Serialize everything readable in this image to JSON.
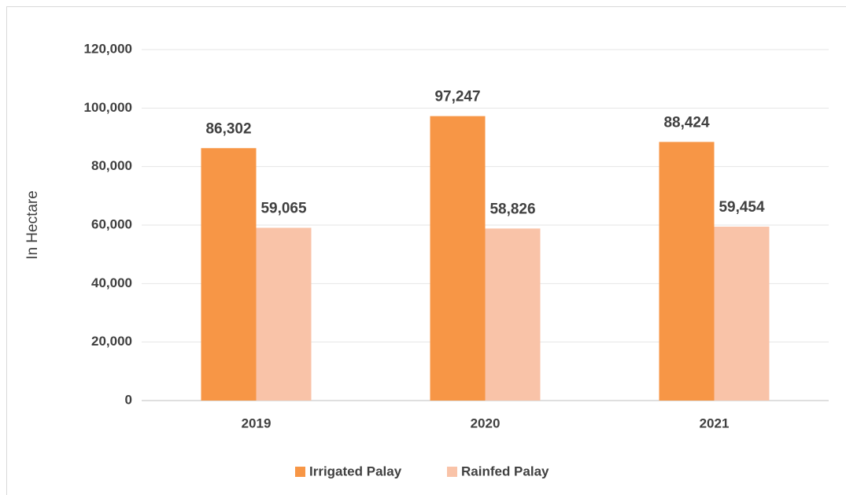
{
  "chart_data": {
    "type": "bar",
    "y_label": "In Hectare",
    "categories": [
      "2019",
      "2020",
      "2021"
    ],
    "series": [
      {
        "name": "Irrigated Palay",
        "color": "#f79646",
        "values": [
          86302,
          97247,
          88424
        ],
        "value_labels": [
          "86,302",
          "97,247",
          "88,424"
        ]
      },
      {
        "name": "Rainfed Palay",
        "color": "#f9c3a8",
        "values": [
          59065,
          58826,
          59454
        ],
        "value_labels": [
          "59,065",
          "58,826",
          "59,454"
        ]
      }
    ],
    "ylim": [
      0,
      120000
    ],
    "yticks": [
      0,
      {
        "value": 20000,
        "label": "20,000"
      },
      {
        "value": 40000,
        "label": "40,000"
      },
      {
        "value": 60000,
        "label": "60,000"
      },
      {
        "value": 80000,
        "label": "80,000"
      },
      {
        "value": 100000,
        "label": "100,000"
      },
      {
        "value": 120000,
        "label": "120,000"
      }
    ],
    "grid": true,
    "legend": "bottom"
  }
}
